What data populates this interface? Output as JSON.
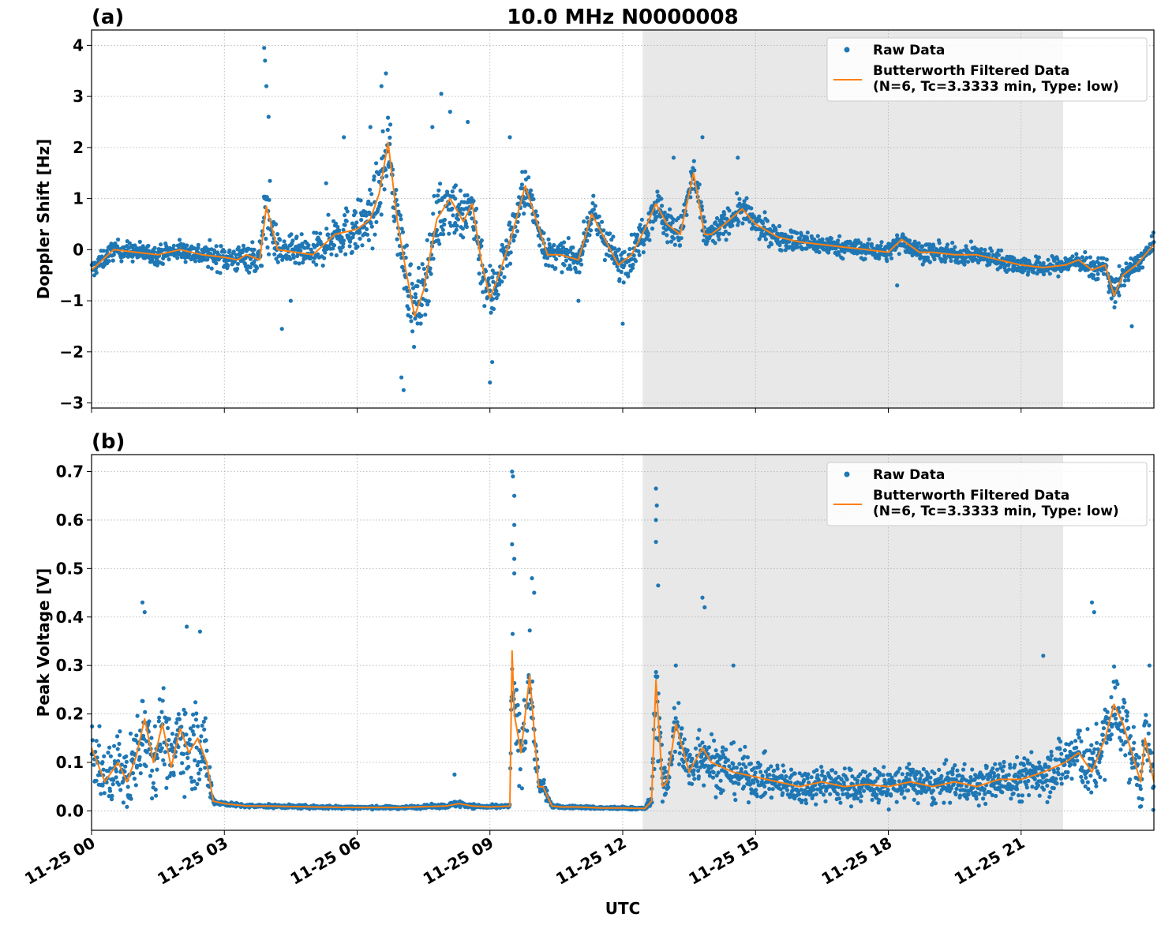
{
  "chart_data": [
    {
      "type": "scatter",
      "panel_label": "(a)",
      "title": "10.0 MHz N0000008",
      "ylabel": "Doppler Shift [Hz]",
      "xlabel": "",
      "xlim": [
        0,
        24
      ],
      "ylim": [
        -3.1,
        4.3
      ],
      "yticks": [
        -3,
        -2,
        -1,
        0,
        1,
        2,
        3,
        4
      ],
      "ytick_labels": [
        "−3",
        "−2",
        "−1",
        "0",
        "1",
        "2",
        "3",
        "4"
      ],
      "xticks": [
        0,
        3,
        6,
        9,
        12,
        15,
        18,
        21
      ],
      "grid": true,
      "shaded_region_hours": [
        12.45,
        21.95
      ],
      "legend_position": "top-right",
      "series": [
        {
          "name": "Raw Data",
          "kind": "points",
          "color": "#1f77b4"
        },
        {
          "name": "Butterworth Filtered Data\n(N=6, Tc=3.3333 min, Type: low)",
          "kind": "line",
          "color": "#ff7f0e"
        }
      ],
      "filtered_x": [
        0,
        0.5,
        1,
        1.5,
        2,
        2.5,
        3,
        3.3,
        3.5,
        3.8,
        3.95,
        4.2,
        4.6,
        5,
        5.5,
        6,
        6.3,
        6.5,
        6.7,
        6.9,
        7.1,
        7.3,
        7.5,
        7.8,
        8.1,
        8.4,
        8.6,
        8.8,
        9.0,
        9.2,
        9.5,
        9.8,
        10,
        10.3,
        10.6,
        11,
        11.3,
        11.6,
        11.9,
        12.2,
        12.5,
        12.75,
        13,
        13.3,
        13.6,
        13.85,
        14,
        14.3,
        14.7,
        15,
        15.5,
        16,
        16.5,
        17,
        17.5,
        18,
        18.3,
        18.7,
        19,
        19.5,
        20,
        20.5,
        21,
        21.5,
        22,
        22.3,
        22.6,
        22.9,
        23.1,
        23.3,
        23.6,
        24
      ],
      "filtered_y": [
        -0.4,
        0.0,
        -0.05,
        -0.1,
        0.0,
        -0.1,
        -0.15,
        -0.2,
        -0.1,
        -0.2,
        0.85,
        0.0,
        -0.05,
        -0.1,
        0.3,
        0.4,
        0.6,
        1.1,
        2.1,
        0.6,
        -0.4,
        -1.3,
        -0.8,
        0.6,
        1.0,
        0.55,
        0.9,
        -0.2,
        -0.95,
        -0.5,
        0.3,
        1.25,
        0.7,
        -0.1,
        -0.1,
        -0.2,
        0.7,
        0.2,
        -0.3,
        -0.1,
        0.4,
        0.9,
        0.5,
        0.3,
        1.5,
        0.3,
        0.3,
        0.5,
        0.8,
        0.5,
        0.25,
        0.15,
        0.1,
        0.05,
        0.0,
        -0.05,
        0.2,
        -0.05,
        -0.05,
        -0.1,
        -0.1,
        -0.2,
        -0.3,
        -0.35,
        -0.3,
        -0.2,
        -0.4,
        -0.3,
        -0.9,
        -0.5,
        -0.3,
        0.1
      ],
      "raw_spread": [
        0.25,
        0.25,
        0.25,
        0.25,
        0.25,
        0.3,
        0.35,
        0.35,
        0.4,
        0.5,
        1.2,
        0.4,
        0.4,
        0.45,
        0.6,
        0.7,
        0.8,
        0.9,
        0.9,
        0.9,
        0.9,
        1.0,
        0.9,
        0.9,
        0.9,
        0.8,
        0.8,
        0.8,
        0.9,
        0.7,
        0.6,
        0.6,
        0.5,
        0.4,
        0.35,
        0.35,
        0.45,
        0.45,
        0.5,
        0.45,
        0.5,
        0.5,
        0.5,
        0.4,
        0.55,
        0.4,
        0.35,
        0.35,
        0.4,
        0.35,
        0.3,
        0.3,
        0.25,
        0.25,
        0.25,
        0.25,
        0.3,
        0.25,
        0.25,
        0.25,
        0.25,
        0.25,
        0.25,
        0.25,
        0.25,
        0.25,
        0.3,
        0.25,
        0.5,
        0.3,
        0.25,
        0.25
      ],
      "raw_outliers": [
        [
          3.9,
          3.95
        ],
        [
          3.92,
          3.7
        ],
        [
          3.95,
          3.2
        ],
        [
          4.0,
          2.6
        ],
        [
          4.3,
          -1.55
        ],
        [
          4.5,
          -1.0
        ],
        [
          5.3,
          1.3
        ],
        [
          5.7,
          2.2
        ],
        [
          6.3,
          2.4
        ],
        [
          6.55,
          3.2
        ],
        [
          6.65,
          3.45
        ],
        [
          7.0,
          -2.5
        ],
        [
          7.05,
          -2.75
        ],
        [
          7.7,
          2.4
        ],
        [
          7.9,
          3.05
        ],
        [
          8.1,
          2.7
        ],
        [
          8.5,
          2.5
        ],
        [
          9.0,
          -2.6
        ],
        [
          9.05,
          -2.2
        ],
        [
          9.45,
          2.2
        ],
        [
          11.0,
          -1.0
        ],
        [
          12.0,
          -1.45
        ],
        [
          13.15,
          1.8
        ],
        [
          13.8,
          2.2
        ],
        [
          14.6,
          1.8
        ],
        [
          18.2,
          -0.7
        ],
        [
          23.5,
          -1.5
        ]
      ]
    },
    {
      "type": "scatter",
      "panel_label": "(b)",
      "title": "",
      "ylabel": "Peak Voltage [V]",
      "xlabel": "UTC",
      "xlim": [
        0,
        24
      ],
      "ylim": [
        -0.04,
        0.735
      ],
      "yticks": [
        0.0,
        0.1,
        0.2,
        0.3,
        0.4,
        0.5,
        0.6,
        0.7
      ],
      "ytick_labels": [
        "0.0",
        "0.1",
        "0.2",
        "0.3",
        "0.4",
        "0.5",
        "0.6",
        "0.7"
      ],
      "xticks": [
        0,
        3,
        6,
        9,
        12,
        15,
        18,
        21
      ],
      "xtick_labels": [
        "11-25 00",
        "11-25 03",
        "11-25 06",
        "11-25 09",
        "11-25 12",
        "11-25 15",
        "11-25 18",
        "11-25 21"
      ],
      "grid": true,
      "shaded_region_hours": [
        12.45,
        21.95
      ],
      "legend_position": "top-right",
      "series": [
        {
          "name": "Raw Data",
          "kind": "points",
          "color": "#1f77b4"
        },
        {
          "name": "Butterworth Filtered Data\n(N=6, Tc=3.3333 min, Type: low)",
          "kind": "line",
          "color": "#ff7f0e"
        }
      ],
      "filtered_x": [
        0,
        0.3,
        0.6,
        0.8,
        1.0,
        1.2,
        1.4,
        1.6,
        1.8,
        2.0,
        2.2,
        2.4,
        2.6,
        2.75,
        3.0,
        3.5,
        4.0,
        5.0,
        6.0,
        7.0,
        8.0,
        8.3,
        8.6,
        9.0,
        9.45,
        9.5,
        9.55,
        9.7,
        9.9,
        10.1,
        10.2,
        10.4,
        10.6,
        11,
        11.5,
        12,
        12.5,
        12.65,
        12.75,
        12.9,
        13.0,
        13.2,
        13.5,
        13.8,
        14.0,
        14.5,
        15,
        15.5,
        16,
        16.5,
        17,
        17.5,
        18,
        18.5,
        19,
        19.5,
        20,
        20.5,
        21,
        21.5,
        22,
        22.3,
        22.6,
        22.9,
        23.1,
        23.3,
        23.5,
        23.7,
        23.8,
        24
      ],
      "filtered_y": [
        0.13,
        0.06,
        0.1,
        0.06,
        0.11,
        0.19,
        0.1,
        0.18,
        0.09,
        0.17,
        0.12,
        0.15,
        0.1,
        0.02,
        0.015,
        0.01,
        0.01,
        0.008,
        0.007,
        0.007,
        0.01,
        0.015,
        0.01,
        0.008,
        0.01,
        0.33,
        0.2,
        0.12,
        0.28,
        0.05,
        0.05,
        0.01,
        0.008,
        0.008,
        0.006,
        0.006,
        0.005,
        0.02,
        0.27,
        0.05,
        0.06,
        0.18,
        0.08,
        0.13,
        0.1,
        0.08,
        0.07,
        0.06,
        0.05,
        0.06,
        0.05,
        0.055,
        0.05,
        0.06,
        0.05,
        0.06,
        0.05,
        0.065,
        0.065,
        0.08,
        0.1,
        0.12,
        0.08,
        0.15,
        0.22,
        0.18,
        0.12,
        0.06,
        0.15,
        0.06
      ],
      "raw_spread": [
        0.08,
        0.08,
        0.09,
        0.09,
        0.12,
        0.14,
        0.1,
        0.12,
        0.1,
        0.12,
        0.12,
        0.12,
        0.1,
        0.01,
        0.006,
        0.005,
        0.005,
        0.005,
        0.004,
        0.004,
        0.006,
        0.01,
        0.006,
        0.005,
        0.005,
        0.15,
        0.12,
        0.1,
        0.12,
        0.03,
        0.03,
        0.005,
        0.004,
        0.004,
        0.004,
        0.004,
        0.004,
        0.02,
        0.15,
        0.06,
        0.06,
        0.1,
        0.07,
        0.09,
        0.08,
        0.07,
        0.06,
        0.05,
        0.05,
        0.05,
        0.05,
        0.05,
        0.05,
        0.05,
        0.05,
        0.05,
        0.05,
        0.055,
        0.06,
        0.07,
        0.08,
        0.09,
        0.09,
        0.1,
        0.12,
        0.1,
        0.09,
        0.08,
        0.1,
        0.08
      ],
      "raw_outliers": [
        [
          1.15,
          0.43
        ],
        [
          1.2,
          0.41
        ],
        [
          2.15,
          0.38
        ],
        [
          2.45,
          0.37
        ],
        [
          8.2,
          0.075
        ],
        [
          9.5,
          0.7
        ],
        [
          9.52,
          0.69
        ],
        [
          9.55,
          0.65
        ],
        [
          9.55,
          0.59
        ],
        [
          9.5,
          0.55
        ],
        [
          9.55,
          0.52
        ],
        [
          9.55,
          0.49
        ],
        [
          9.95,
          0.48
        ],
        [
          10.0,
          0.45
        ],
        [
          12.75,
          0.665
        ],
        [
          12.77,
          0.63
        ],
        [
          12.75,
          0.6
        ],
        [
          12.75,
          0.555
        ],
        [
          12.8,
          0.465
        ],
        [
          13.8,
          0.44
        ],
        [
          13.85,
          0.42
        ],
        [
          22.6,
          0.43
        ],
        [
          22.65,
          0.41
        ],
        [
          21.5,
          0.32
        ],
        [
          23.9,
          0.3
        ],
        [
          14.5,
          0.3
        ],
        [
          13.2,
          0.3
        ]
      ]
    }
  ]
}
